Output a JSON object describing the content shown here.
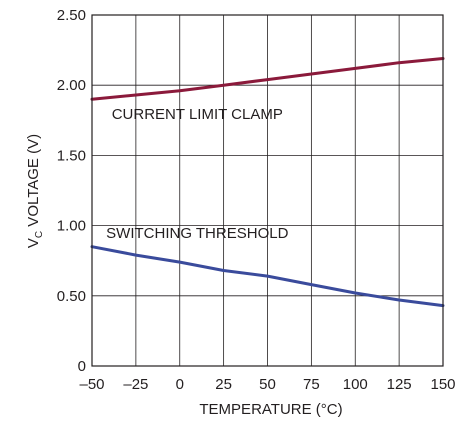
{
  "chart_data": {
    "type": "line",
    "xlabel": "TEMPERATURE (°C)",
    "ylabel_main": "V",
    "ylabel_sub": "C",
    "ylabel_rest": " VOLTAGE (V)",
    "xlim": [
      -50,
      150
    ],
    "ylim": [
      0,
      2.5
    ],
    "x_ticks": [
      {
        "value": -50,
        "label": "–50"
      },
      {
        "value": -25,
        "label": "–25"
      },
      {
        "value": 0,
        "label": "0"
      },
      {
        "value": 25,
        "label": "25"
      },
      {
        "value": 50,
        "label": "50"
      },
      {
        "value": 75,
        "label": "75"
      },
      {
        "value": 100,
        "label": "100"
      },
      {
        "value": 125,
        "label": "125"
      },
      {
        "value": 150,
        "label": "150"
      }
    ],
    "y_ticks": [
      {
        "value": 0,
        "label": "0"
      },
      {
        "value": 0.5,
        "label": "0.50"
      },
      {
        "value": 1.0,
        "label": "1.00"
      },
      {
        "value": 1.5,
        "label": "1.50"
      },
      {
        "value": 2.0,
        "label": "2.00"
      },
      {
        "value": 2.5,
        "label": "2.50"
      }
    ],
    "grid": true,
    "series": [
      {
        "name": "CURRENT LIMIT CLAMP",
        "color": "#8b1a3b",
        "x": [
          -50,
          -25,
          0,
          25,
          50,
          75,
          100,
          125,
          150
        ],
        "y": [
          1.9,
          1.93,
          1.96,
          2.0,
          2.04,
          2.08,
          2.12,
          2.16,
          2.19
        ]
      },
      {
        "name": "SWITCHING THRESHOLD",
        "color": "#3a4b9c",
        "x": [
          -50,
          -25,
          0,
          25,
          50,
          75,
          100,
          125,
          150
        ],
        "y": [
          0.85,
          0.79,
          0.74,
          0.68,
          0.64,
          0.58,
          0.52,
          0.47,
          0.43
        ]
      }
    ]
  }
}
